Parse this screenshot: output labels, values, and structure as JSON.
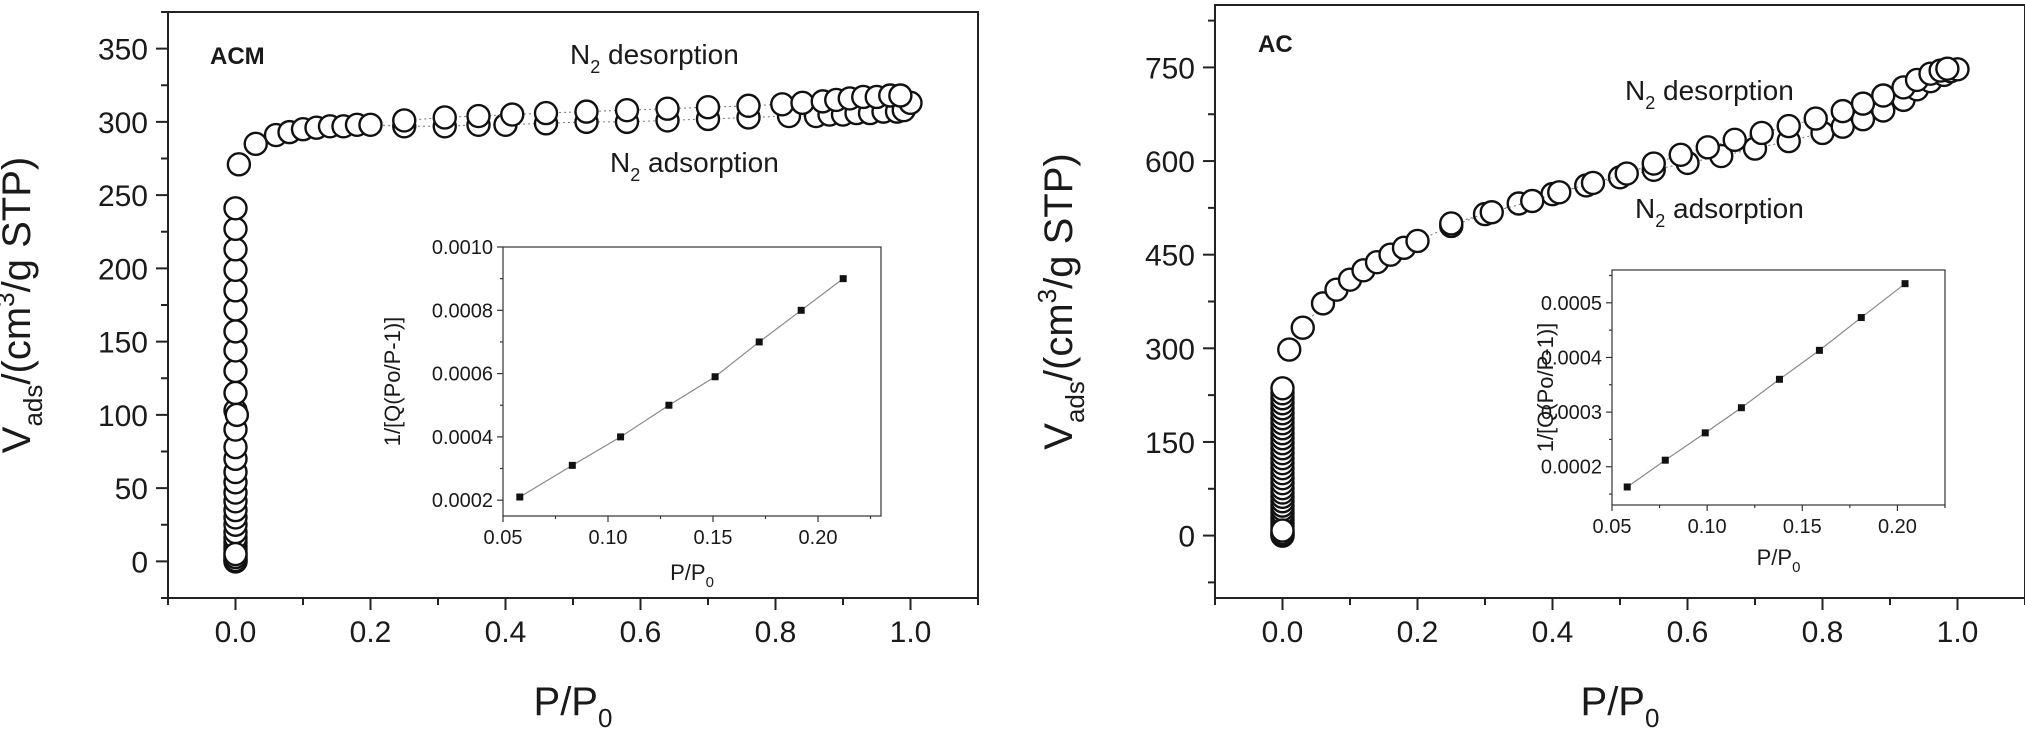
{
  "chart_data": [
    {
      "type": "scatter",
      "title": "ACM",
      "xlabel": "P/P0",
      "ylabel": "Vads/(cm3/g STP)",
      "xlabel_parts": {
        "base": "P/P",
        "sub": "0"
      },
      "ylabel_parts": {
        "v": "V",
        "vsub": "ads",
        "pre": "/(cm",
        "sup": "3",
        "post": "/g STP)"
      },
      "xlim": [
        -0.1,
        1.1
      ],
      "ylim": [
        -25,
        375
      ],
      "xticks": [
        0.0,
        0.2,
        0.4,
        0.6,
        0.8,
        1.0
      ],
      "yticks": [
        0,
        50,
        100,
        150,
        200,
        250,
        300,
        350
      ],
      "xtick_labels": [
        "0.0",
        "0.2",
        "0.4",
        "0.6",
        "0.8",
        "1.0"
      ],
      "ytick_labels": [
        "0",
        "50",
        "100",
        "150",
        "200",
        "250",
        "300",
        "350"
      ],
      "annotations": [
        {
          "base": "N",
          "sub": "2",
          "rest": " desorption"
        },
        {
          "base": "N",
          "sub": "2",
          "rest": " adsorption"
        }
      ],
      "series": [
        {
          "x": [
            0.0,
            0.0,
            0.0,
            0.0,
            0.0,
            0.0,
            0.0,
            0.0,
            0.0,
            0.0,
            0.0,
            0.0,
            0.0,
            0.0,
            0.0,
            0.0,
            0.0,
            0.0,
            0.0,
            0.0,
            0.0,
            0.0,
            0.0,
            0.0,
            0.0,
            0.0,
            0.0,
            0.0,
            0.0,
            0.0,
            0.0,
            0.0,
            0.0,
            0.0,
            0.002,
            0.005,
            0.03,
            0.06,
            0.08,
            0.1,
            0.12,
            0.14,
            0.16,
            0.18,
            0.2,
            0.25,
            0.31,
            0.36,
            0.4,
            0.46,
            0.52,
            0.58,
            0.64,
            0.7,
            0.76,
            0.82,
            0.86,
            0.88,
            0.9,
            0.92,
            0.94,
            0.96,
            0.98,
            0.99,
            1.0
          ],
          "y": [
            0,
            2,
            4,
            6,
            8,
            10,
            13,
            16,
            20,
            25,
            30,
            35,
            41,
            47,
            54,
            61,
            70,
            78,
            90,
            103,
            115,
            130,
            144,
            157,
            172,
            185,
            199,
            213,
            227,
            241,
            0,
            1,
            3,
            5,
            100,
            271,
            285,
            291,
            293,
            295,
            296,
            297,
            297,
            298,
            298,
            297,
            297,
            298,
            298,
            299,
            300,
            300,
            301,
            302,
            303,
            304,
            304,
            305,
            305,
            306,
            306,
            307,
            307,
            308,
            313
          ]
        },
        {
          "x": [
            0.25,
            0.31,
            0.36,
            0.41,
            0.46,
            0.52,
            0.58,
            0.64,
            0.7,
            0.76,
            0.81,
            0.84,
            0.87,
            0.89,
            0.91,
            0.93,
            0.95,
            0.97,
            0.985
          ],
          "y": [
            301,
            303,
            304,
            305,
            306,
            307,
            308,
            309,
            310,
            311,
            312,
            313,
            314,
            315,
            316,
            317,
            317,
            318,
            318
          ]
        }
      ],
      "inset": {
        "type": "line",
        "xlabel": "P/P0",
        "ylabel": "1/[Q(Po/P-1)]",
        "xlabel_parts": {
          "base": "P/P",
          "sub": "0"
        },
        "xlim": [
          0.05,
          0.23
        ],
        "ylim": [
          0.00015,
          0.001
        ],
        "xticks": [
          0.05,
          0.1,
          0.15,
          0.2
        ],
        "yticks": [
          0.0002,
          0.0004,
          0.0006,
          0.0008,
          0.001
        ],
        "xtick_labels": [
          "0.05",
          "0.10",
          "0.15",
          "0.20"
        ],
        "ytick_labels": [
          "0.0002",
          "0.0004",
          "0.0006",
          "0.0008",
          "0.0010"
        ],
        "x": [
          0.058,
          0.083,
          0.106,
          0.129,
          0.151,
          0.172,
          0.192,
          0.212
        ],
        "y": [
          0.00021,
          0.00031,
          0.0004,
          0.0005,
          0.00059,
          0.0007,
          0.0008,
          0.0009
        ]
      }
    },
    {
      "type": "scatter",
      "title": "AC",
      "xlabel": "P/P0",
      "ylabel": "Vads/(cm3/g STP)",
      "xlabel_parts": {
        "base": "P/P",
        "sub": "0"
      },
      "ylabel_parts": {
        "v": "V",
        "vsub": "ads",
        "pre": "/(cm",
        "sup": "3",
        "post": "/g STP)"
      },
      "xlim": [
        -0.1,
        1.1
      ],
      "ylim": [
        -100,
        850
      ],
      "xticks": [
        0.0,
        0.2,
        0.4,
        0.6,
        0.8,
        1.0
      ],
      "yticks": [
        0,
        150,
        300,
        450,
        600,
        750
      ],
      "xtick_labels": [
        "0.0",
        "0.2",
        "0.4",
        "0.6",
        "0.8",
        "1.0"
      ],
      "ytick_labels": [
        "0",
        "150",
        "300",
        "450",
        "600",
        "750"
      ],
      "annotations": [
        {
          "base": "N",
          "sub": "2",
          "rest": " desorption"
        },
        {
          "base": "N",
          "sub": "2",
          "rest": " adsorption"
        }
      ],
      "series": [
        {
          "x": [
            0.0,
            0.0,
            0.0,
            0.0,
            0.0,
            0.0,
            0.0,
            0.0,
            0.0,
            0.0,
            0.0,
            0.0,
            0.0,
            0.0,
            0.0,
            0.0,
            0.0,
            0.0,
            0.0,
            0.0,
            0.0,
            0.0,
            0.0,
            0.0,
            0.0,
            0.0,
            0.0,
            0.0,
            0.0,
            0.0,
            0.0,
            0.0,
            0.0,
            0.0,
            0.0,
            0.0,
            0.0,
            0.0,
            0.01,
            0.03,
            0.06,
            0.08,
            0.1,
            0.12,
            0.14,
            0.16,
            0.18,
            0.2,
            0.25,
            0.3,
            0.35,
            0.4,
            0.45,
            0.5,
            0.55,
            0.6,
            0.65,
            0.7,
            0.75,
            0.8,
            0.83,
            0.86,
            0.89,
            0.92,
            0.94,
            0.96,
            0.98,
            0.99,
            1.0
          ],
          "y": [
            0,
            5,
            10,
            15,
            20,
            25,
            30,
            36,
            42,
            48,
            55,
            62,
            69,
            76,
            84,
            92,
            100,
            108,
            116,
            124,
            132,
            140,
            148,
            156,
            164,
            172,
            180,
            188,
            196,
            204,
            212,
            220,
            228,
            236,
            0,
            2,
            4,
            8,
            298,
            333,
            372,
            394,
            410,
            425,
            438,
            450,
            461,
            472,
            496,
            515,
            532,
            547,
            561,
            574,
            586,
            597,
            608,
            620,
            632,
            645,
            655,
            667,
            681,
            698,
            715,
            728,
            738,
            744,
            747
          ]
        },
        {
          "x": [
            0.25,
            0.31,
            0.37,
            0.41,
            0.46,
            0.51,
            0.55,
            0.59,
            0.63,
            0.67,
            0.71,
            0.75,
            0.79,
            0.83,
            0.86,
            0.89,
            0.92,
            0.94,
            0.96,
            0.975,
            0.985
          ],
          "y": [
            500,
            518,
            536,
            550,
            565,
            580,
            596,
            610,
            622,
            634,
            645,
            656,
            668,
            680,
            692,
            705,
            718,
            730,
            740,
            745,
            748
          ]
        }
      ],
      "inset": {
        "type": "line",
        "xlabel": "P/P0",
        "ylabel": "1/[Q(Po/P-1)]",
        "xlabel_parts": {
          "base": "P/P",
          "sub": "0"
        },
        "xlim": [
          0.05,
          0.225
        ],
        "ylim": [
          0.00013,
          0.00056
        ],
        "xticks": [
          0.05,
          0.1,
          0.15,
          0.2
        ],
        "yticks": [
          0.0002,
          0.0003,
          0.0004,
          0.0005
        ],
        "xtick_labels": [
          "0.05",
          "0.10",
          "0.15",
          "0.20"
        ],
        "ytick_labels": [
          "0.0002",
          "0.0003",
          "0.0004",
          "0.0005"
        ],
        "x": [
          0.058,
          0.078,
          0.099,
          0.118,
          0.138,
          0.159,
          0.181,
          0.204
        ],
        "y": [
          0.000163,
          0.000212,
          0.000262,
          0.000308,
          0.00036,
          0.000413,
          0.000473,
          0.000535
        ]
      }
    }
  ]
}
